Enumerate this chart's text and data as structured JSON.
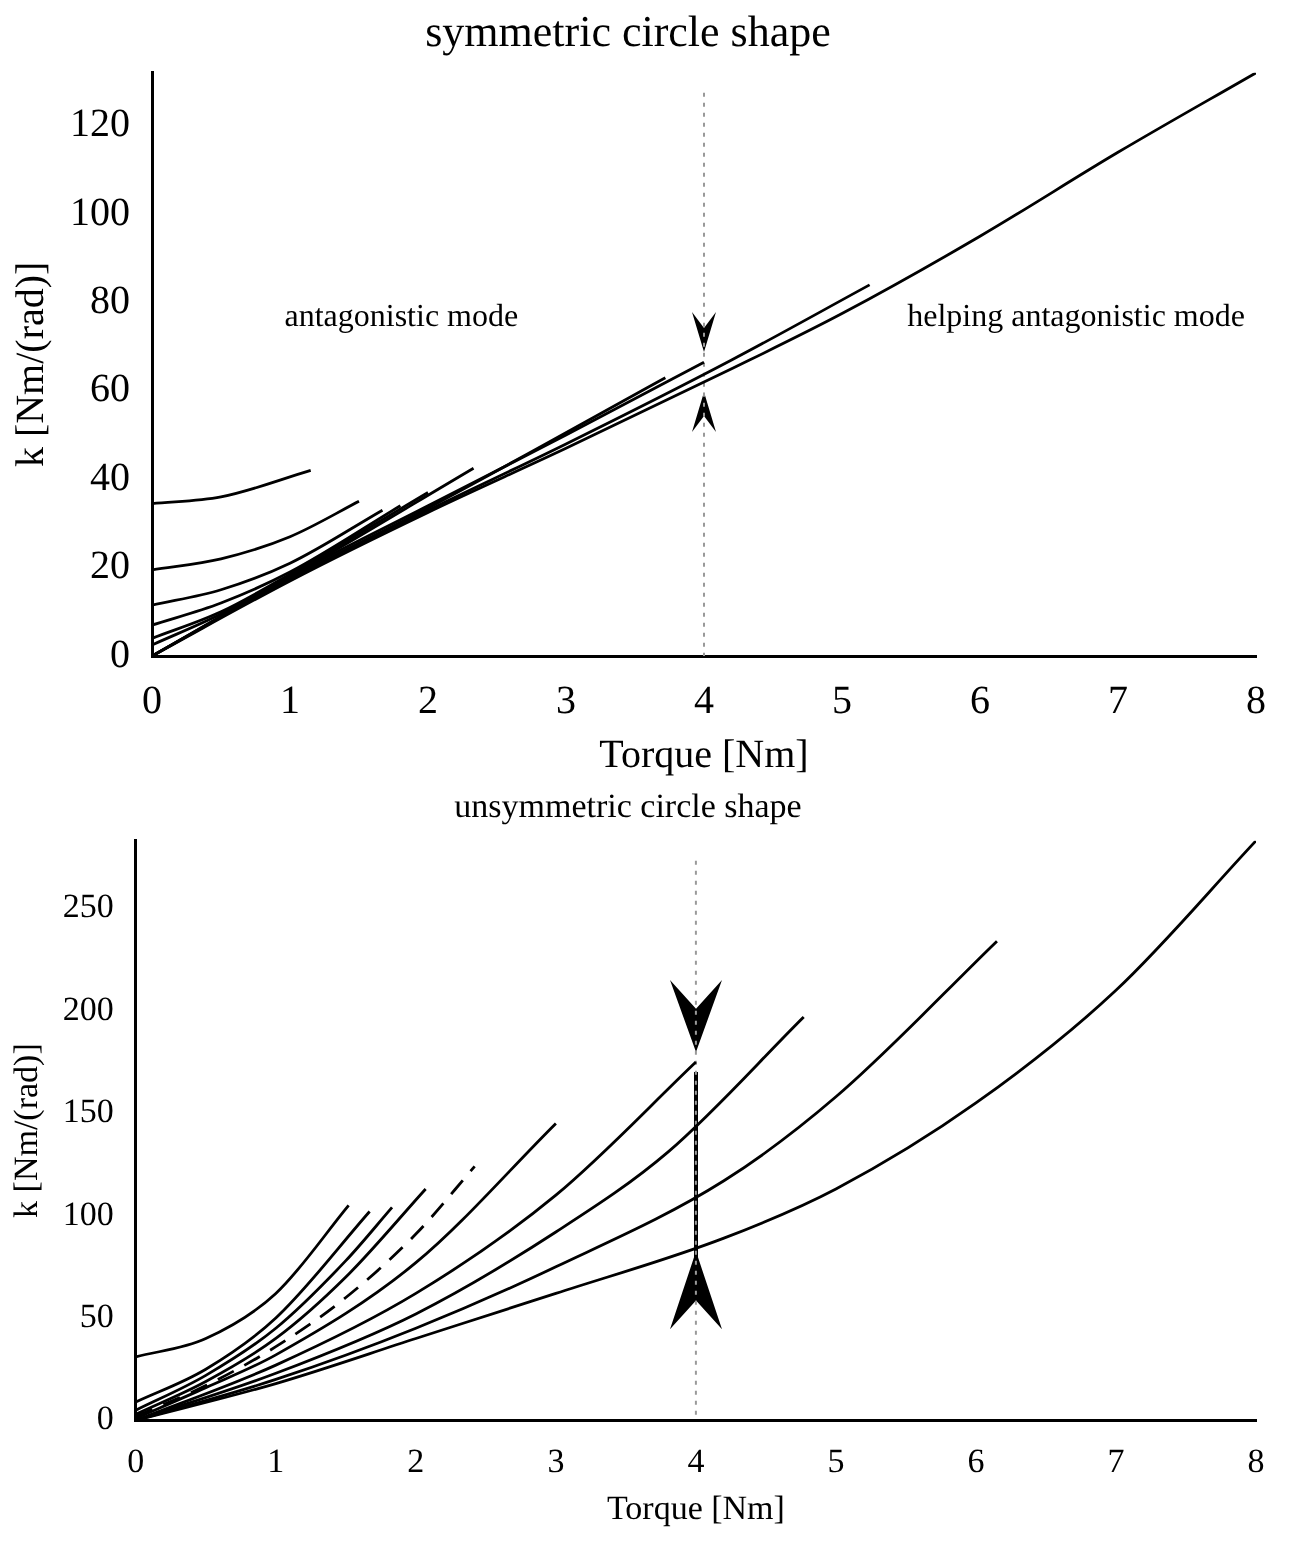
{
  "chart_data": [
    {
      "type": "line",
      "title": "symmetric circle shape",
      "xlabel": "Torque [Nm]",
      "ylabel": "k [Nm/(rad)]",
      "xlim": [
        0,
        8
      ],
      "xticks": [
        0,
        1,
        2,
        3,
        4,
        5,
        6,
        7,
        8
      ],
      "ylim": [
        0,
        132
      ],
      "yticks": [
        0,
        20,
        40,
        60,
        80,
        100,
        120
      ],
      "grid": false,
      "legend": false,
      "marker": "none",
      "series": [
        {
          "color": "#000000",
          "x": [
            0,
            0.5,
            1.15
          ],
          "values": [
            34.5,
            36,
            42
          ]
        },
        {
          "color": "#000000",
          "x": [
            0,
            0.5,
            1,
            1.5
          ],
          "values": [
            19.5,
            22,
            27,
            35
          ]
        },
        {
          "color": "#000000",
          "x": [
            0,
            0.5,
            1,
            1.67
          ],
          "values": [
            11.5,
            15,
            21,
            33
          ]
        },
        {
          "color": "#000000",
          "x": [
            0,
            0.5,
            1,
            1.8
          ],
          "values": [
            7,
            12,
            19,
            34
          ]
        },
        {
          "color": "#000000",
          "x": [
            0,
            0.5,
            1,
            2
          ],
          "values": [
            4,
            10,
            18.5,
            37
          ]
        },
        {
          "color": "#000000",
          "x": [
            0,
            0.5,
            1,
            2.33
          ],
          "values": [
            2.5,
            9.5,
            18,
            42.5
          ]
        },
        {
          "color": "#000000",
          "x": [
            0,
            1,
            2,
            3.72
          ],
          "values": [
            0,
            17.5,
            33.5,
            63
          ]
        },
        {
          "color": "#000000",
          "x": [
            0,
            0.5,
            1,
            2,
            3,
            4
          ],
          "values": [
            0,
            9,
            18,
            34,
            50,
            66.5
          ]
        },
        {
          "color": "#000000",
          "x": [
            0,
            1,
            2,
            3,
            4.2,
            5.2
          ],
          "values": [
            0,
            17.5,
            33,
            48,
            67,
            84
          ]
        },
        {
          "color": "#000000",
          "x": [
            0,
            1,
            2,
            3,
            4.2,
            5,
            6,
            7,
            8
          ],
          "values": [
            0,
            17,
            32.5,
            47,
            65,
            77.5,
            95,
            114,
            132
          ]
        }
      ],
      "ref_lines": [
        {
          "axis": "x",
          "value": 4,
          "color": "#999999",
          "line_style": "dotted"
        }
      ],
      "annotations": [
        "antagonistic mode",
        "helping antagonistic mode"
      ]
    },
    {
      "type": "line",
      "title": "unsymmetric circle shape",
      "xlabel": "Torque [Nm]",
      "ylabel": "k [Nm/(rad)]",
      "xlim": [
        0,
        8
      ],
      "xticks": [
        0,
        1,
        2,
        3,
        4,
        5,
        6,
        7,
        8
      ],
      "ylim": [
        0,
        283
      ],
      "yticks": [
        0,
        50,
        100,
        150,
        200,
        250
      ],
      "grid": false,
      "legend": false,
      "marker": "none",
      "series": [
        {
          "color": "#000000",
          "x": [
            0,
            0.5,
            1,
            1.52
          ],
          "values": [
            31,
            40,
            62,
            105
          ]
        },
        {
          "color": "#000000",
          "x": [
            0,
            0.5,
            1,
            1.67
          ],
          "values": [
            9,
            25,
            50,
            102
          ]
        },
        {
          "color": "#000000",
          "x": [
            0,
            0.5,
            1,
            1.5,
            1.83
          ],
          "values": [
            5,
            22,
            45,
            78,
            104
          ]
        },
        {
          "color": "#000000",
          "x": [
            0,
            0.5,
            1,
            1.5,
            2.07
          ],
          "values": [
            3,
            19,
            40,
            70,
            113
          ]
        },
        {
          "color": "#000000",
          "line_style": "dashed",
          "x": [
            0,
            0.5,
            1,
            1.5,
            2,
            2.42
          ],
          "values": [
            2,
            17,
            36,
            60,
            91,
            124
          ]
        },
        {
          "color": "#000000",
          "x": [
            0,
            0.5,
            1,
            2,
            3
          ],
          "values": [
            1,
            16,
            32,
            77,
            145
          ]
        },
        {
          "color": "#000000",
          "x": [
            0,
            1,
            2,
            3,
            4
          ],
          "values": [
            0,
            27,
            62,
            110,
            175
          ]
        },
        {
          "color": "#000000",
          "x": [
            0,
            1,
            2,
            3,
            3.8,
            4.77
          ],
          "values": [
            0,
            23,
            52,
            92,
            131,
            197
          ]
        },
        {
          "color": "#000000",
          "x": [
            0,
            1,
            2,
            3,
            4.2,
            5,
            6.15
          ],
          "values": [
            0,
            20,
            45,
            75,
            117,
            158,
            234
          ]
        },
        {
          "color": "#000000",
          "x": [
            0,
            1,
            2,
            3,
            4.2,
            5,
            6,
            7,
            8
          ],
          "values": [
            0,
            18,
            40,
            62,
            89,
            113,
            155,
            210,
            283
          ]
        }
      ],
      "ref_lines": [
        {
          "axis": "x",
          "value": 4,
          "color": "#999999",
          "line_style": "dotted"
        }
      ]
    }
  ]
}
